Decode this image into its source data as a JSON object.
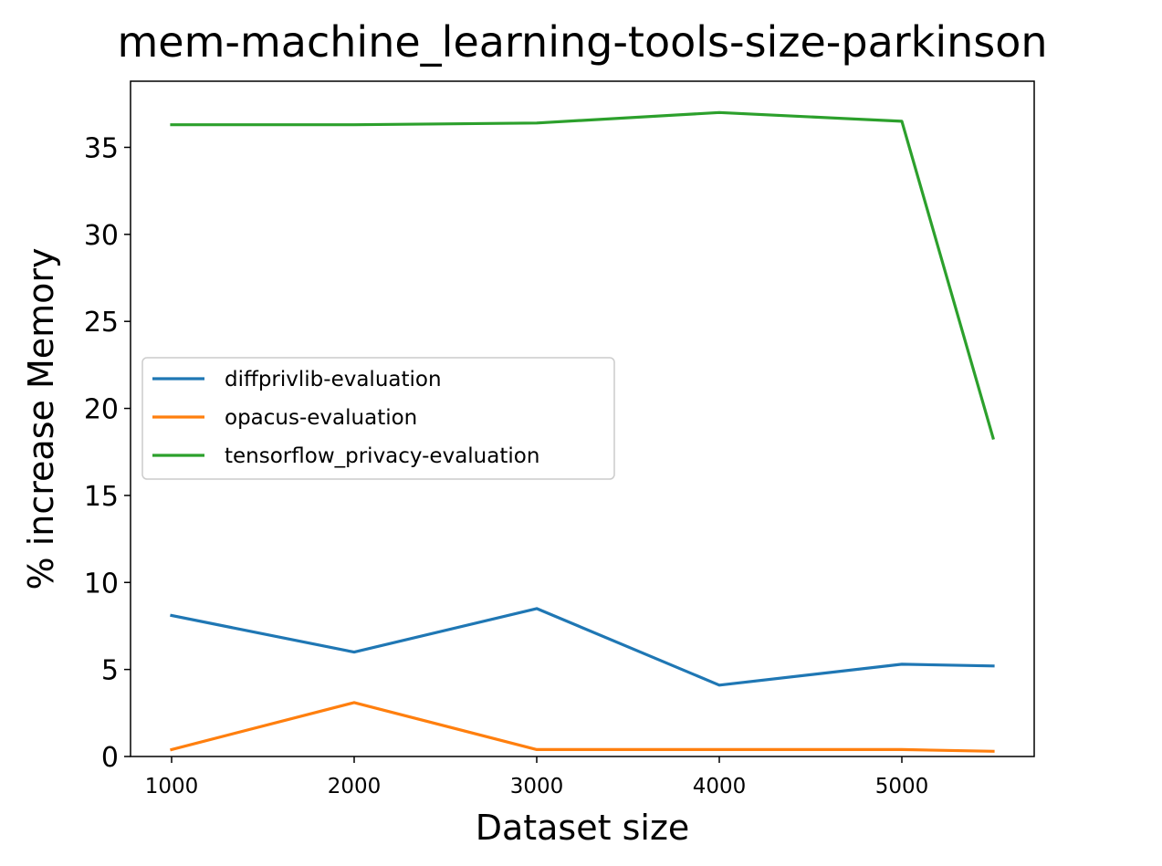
{
  "chart_data": {
    "type": "line",
    "title": "mem-machine_learning-tools-size-parkinson",
    "xlabel": "Dataset size",
    "ylabel": "% increase Memory",
    "x": [
      1000,
      2000,
      3000,
      4000,
      5000,
      5500
    ],
    "xlim": [
      775,
      5725
    ],
    "ylim": [
      0,
      38.8
    ],
    "xticks": [
      "1000",
      "2000",
      "3000",
      "4000",
      "5000"
    ],
    "yticks": [
      "0",
      "5",
      "10",
      "15",
      "20",
      "25",
      "30",
      "35"
    ],
    "grid": false,
    "legend_position": "center-left",
    "series": [
      {
        "name": "diffprivlib-evaluation",
        "color": "#1f77b4",
        "values": [
          8.1,
          6.0,
          8.5,
          4.1,
          5.3,
          5.2
        ]
      },
      {
        "name": "opacus-evaluation",
        "color": "#ff7f0e",
        "values": [
          0.4,
          3.1,
          0.4,
          0.4,
          0.4,
          0.3
        ]
      },
      {
        "name": "tensorflow_privacy-evaluation",
        "color": "#2ca02c",
        "values": [
          36.3,
          36.3,
          36.4,
          37.0,
          36.5,
          18.3
        ]
      }
    ]
  }
}
